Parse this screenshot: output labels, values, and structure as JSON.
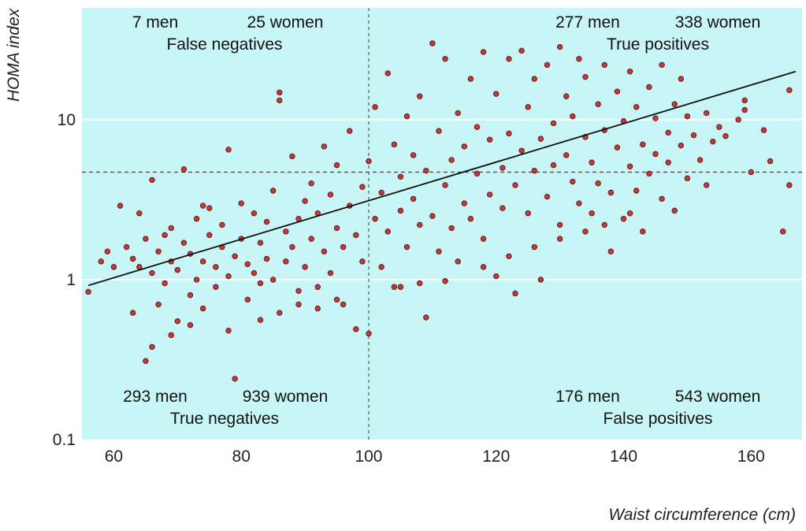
{
  "chart_data": {
    "type": "scatter",
    "title": "",
    "xlabel": "Waist circumference (cm)",
    "ylabel": "HOMA index",
    "xlim": [
      55,
      168
    ],
    "ylim": [
      0.1,
      50
    ],
    "y_scale": "log",
    "x_ticks": [
      60,
      80,
      100,
      120,
      140,
      160
    ],
    "x_tick_labels": [
      "60",
      "80",
      "100",
      "120",
      "140",
      "160"
    ],
    "y_ticks": [
      0.1,
      1,
      10
    ],
    "y_tick_labels": [
      "0.1",
      "1",
      "10"
    ],
    "grid": "horizontal",
    "colors": {
      "background": "#c8f5f6",
      "point": "#c0393b",
      "point_edge": "#5a1010",
      "line": "#111111"
    },
    "cutoffs": {
      "x": 100,
      "y": 4.7
    },
    "regression_line": {
      "x": [
        56,
        167
      ],
      "y": [
        0.92,
        20.0
      ]
    },
    "quadrants": [
      {
        "position": "top-left",
        "men": "7 men",
        "women": "25 women",
        "label": "False negatives"
      },
      {
        "position": "top-right",
        "men": "277 men",
        "women": "338 women",
        "label": "True positives"
      },
      {
        "position": "bottom-left",
        "men": "293 men",
        "women": "939 women",
        "label": "True negatives"
      },
      {
        "position": "bottom-right",
        "men": "176 men",
        "women": "543 women",
        "label": "False positives"
      }
    ],
    "series": [
      {
        "points": [
          [
            56,
            0.84
          ],
          [
            58,
            1.3
          ],
          [
            59,
            1.5
          ],
          [
            60,
            1.2
          ],
          [
            61,
            2.9
          ],
          [
            62,
            1.6
          ],
          [
            63,
            0.62
          ],
          [
            63,
            1.35
          ],
          [
            64,
            1.2
          ],
          [
            64,
            2.6
          ],
          [
            65,
            0.31
          ],
          [
            65,
            1.8
          ],
          [
            66,
            1.1
          ],
          [
            66,
            4.2
          ],
          [
            67,
            0.7
          ],
          [
            67,
            1.5
          ],
          [
            68,
            1.9
          ],
          [
            68,
            0.95
          ],
          [
            69,
            1.3
          ],
          [
            69,
            2.1
          ],
          [
            70,
            0.55
          ],
          [
            70,
            1.15
          ],
          [
            71,
            1.7
          ],
          [
            71,
            4.9
          ],
          [
            72,
            0.8
          ],
          [
            72,
            1.45
          ],
          [
            73,
            2.4
          ],
          [
            73,
            1.0
          ],
          [
            74,
            1.3
          ],
          [
            74,
            0.66
          ],
          [
            75,
            1.9
          ],
          [
            75,
            2.8
          ],
          [
            76,
            1.2
          ],
          [
            76,
            0.9
          ],
          [
            77,
            1.6
          ],
          [
            77,
            2.2
          ],
          [
            78,
            1.05
          ],
          [
            78,
            6.5
          ],
          [
            79,
            0.24
          ],
          [
            79,
            1.4
          ],
          [
            80,
            3.0
          ],
          [
            80,
            1.8
          ],
          [
            81,
            0.75
          ],
          [
            81,
            1.25
          ],
          [
            82,
            2.6
          ],
          [
            82,
            1.1
          ],
          [
            83,
            1.7
          ],
          [
            83,
            0.95
          ],
          [
            84,
            2.3
          ],
          [
            84,
            1.35
          ],
          [
            85,
            3.6
          ],
          [
            85,
            1.0
          ],
          [
            86,
            14.8
          ],
          [
            86,
            13.2
          ],
          [
            87,
            2.0
          ],
          [
            87,
            1.3
          ],
          [
            88,
            5.9
          ],
          [
            88,
            1.6
          ],
          [
            89,
            0.85
          ],
          [
            89,
            2.4
          ],
          [
            90,
            3.1
          ],
          [
            90,
            1.2
          ],
          [
            91,
            1.8
          ],
          [
            91,
            4.0
          ],
          [
            92,
            0.9
          ],
          [
            92,
            2.6
          ],
          [
            93,
            1.5
          ],
          [
            93,
            6.8
          ],
          [
            94,
            3.4
          ],
          [
            94,
            1.1
          ],
          [
            95,
            2.1
          ],
          [
            95,
            5.2
          ],
          [
            96,
            1.6
          ],
          [
            96,
            0.7
          ],
          [
            97,
            8.5
          ],
          [
            97,
            2.9
          ],
          [
            98,
            0.49
          ],
          [
            98,
            1.9
          ],
          [
            99,
            3.8
          ],
          [
            99,
            1.3
          ],
          [
            100,
            0.46
          ],
          [
            100,
            5.5
          ],
          [
            101,
            2.4
          ],
          [
            101,
            12.0
          ],
          [
            102,
            1.2
          ],
          [
            102,
            3.5
          ],
          [
            103,
            19.5
          ],
          [
            103,
            2.0
          ],
          [
            104,
            7.0
          ],
          [
            104,
            0.9
          ],
          [
            105,
            4.4
          ],
          [
            105,
            2.7
          ],
          [
            106,
            10.5
          ],
          [
            106,
            1.6
          ],
          [
            107,
            3.2
          ],
          [
            107,
            6.0
          ],
          [
            108,
            2.2
          ],
          [
            108,
            14.0
          ],
          [
            109,
            0.58
          ],
          [
            109,
            4.8
          ],
          [
            110,
            30.0
          ],
          [
            110,
            2.5
          ],
          [
            111,
            8.5
          ],
          [
            111,
            1.5
          ],
          [
            112,
            24.0
          ],
          [
            112,
            3.9
          ],
          [
            113,
            5.6
          ],
          [
            113,
            2.1
          ],
          [
            114,
            11.0
          ],
          [
            114,
            1.3
          ],
          [
            115,
            6.8
          ],
          [
            115,
            3.0
          ],
          [
            116,
            18.0
          ],
          [
            116,
            2.4
          ],
          [
            117,
            4.6
          ],
          [
            117,
            9.0
          ],
          [
            118,
            1.8
          ],
          [
            118,
            26.5
          ],
          [
            119,
            7.5
          ],
          [
            119,
            3.4
          ],
          [
            120,
            1.05
          ],
          [
            120,
            14.5
          ],
          [
            121,
            5.0
          ],
          [
            121,
            2.8
          ],
          [
            122,
            24.0
          ],
          [
            122,
            8.2
          ],
          [
            123,
            0.82
          ],
          [
            123,
            3.9
          ],
          [
            124,
            27.0
          ],
          [
            124,
            6.4
          ],
          [
            125,
            12.0
          ],
          [
            125,
            2.6
          ],
          [
            126,
            4.8
          ],
          [
            126,
            18.0
          ],
          [
            127,
            1.0
          ],
          [
            127,
            7.6
          ],
          [
            128,
            3.3
          ],
          [
            128,
            22.0
          ],
          [
            129,
            9.5
          ],
          [
            129,
            5.2
          ],
          [
            130,
            28.5
          ],
          [
            130,
            2.2
          ],
          [
            131,
            6.0
          ],
          [
            131,
            14.0
          ],
          [
            132,
            4.1
          ],
          [
            132,
            10.5
          ],
          [
            133,
            24.0
          ],
          [
            133,
            3.0
          ],
          [
            134,
            7.8
          ],
          [
            134,
            18.5
          ],
          [
            135,
            2.6
          ],
          [
            135,
            5.4
          ],
          [
            136,
            12.5
          ],
          [
            136,
            4.0
          ],
          [
            137,
            22.0
          ],
          [
            137,
            8.6
          ],
          [
            138,
            3.5
          ],
          [
            138,
            1.5
          ],
          [
            139,
            6.7
          ],
          [
            139,
            15.0
          ],
          [
            140,
            2.4
          ],
          [
            140,
            9.8
          ],
          [
            141,
            5.1
          ],
          [
            141,
            20.0
          ],
          [
            142,
            3.6
          ],
          [
            142,
            12.0
          ],
          [
            143,
            7.0
          ],
          [
            143,
            2.0
          ],
          [
            144,
            16.0
          ],
          [
            144,
            4.6
          ],
          [
            145,
            10.2
          ],
          [
            145,
            6.1
          ],
          [
            146,
            3.2
          ],
          [
            146,
            22.0
          ],
          [
            147,
            8.3
          ],
          [
            147,
            5.4
          ],
          [
            148,
            2.7
          ],
          [
            148,
            12.5
          ],
          [
            149,
            6.9
          ],
          [
            149,
            18.0
          ],
          [
            150,
            4.3
          ],
          [
            150,
            10.5
          ],
          [
            151,
            8.0
          ],
          [
            152,
            5.6
          ],
          [
            153,
            11.0
          ],
          [
            153,
            3.9
          ],
          [
            154,
            7.3
          ],
          [
            155,
            9.0
          ],
          [
            156,
            7.9
          ],
          [
            158,
            10.0
          ],
          [
            159,
            11.5
          ],
          [
            159,
            13.2
          ],
          [
            160,
            4.7
          ],
          [
            162,
            8.6
          ],
          [
            163,
            5.5
          ],
          [
            165,
            2.0
          ],
          [
            166,
            15.3
          ],
          [
            166,
            3.9
          ],
          [
            66,
            0.38
          ],
          [
            69,
            0.45
          ],
          [
            72,
            0.52
          ],
          [
            74,
            2.9
          ],
          [
            78,
            0.48
          ],
          [
            83,
            0.56
          ],
          [
            86,
            0.62
          ],
          [
            89,
            0.7
          ],
          [
            92,
            0.66
          ],
          [
            95,
            0.75
          ],
          [
            105,
            0.9
          ],
          [
            108,
            0.95
          ],
          [
            112,
            0.98
          ],
          [
            118,
            1.2
          ],
          [
            122,
            1.4
          ],
          [
            126,
            1.6
          ],
          [
            130,
            1.8
          ],
          [
            134,
            2.0
          ],
          [
            137,
            2.2
          ],
          [
            141,
            2.6
          ]
        ]
      }
    ]
  }
}
